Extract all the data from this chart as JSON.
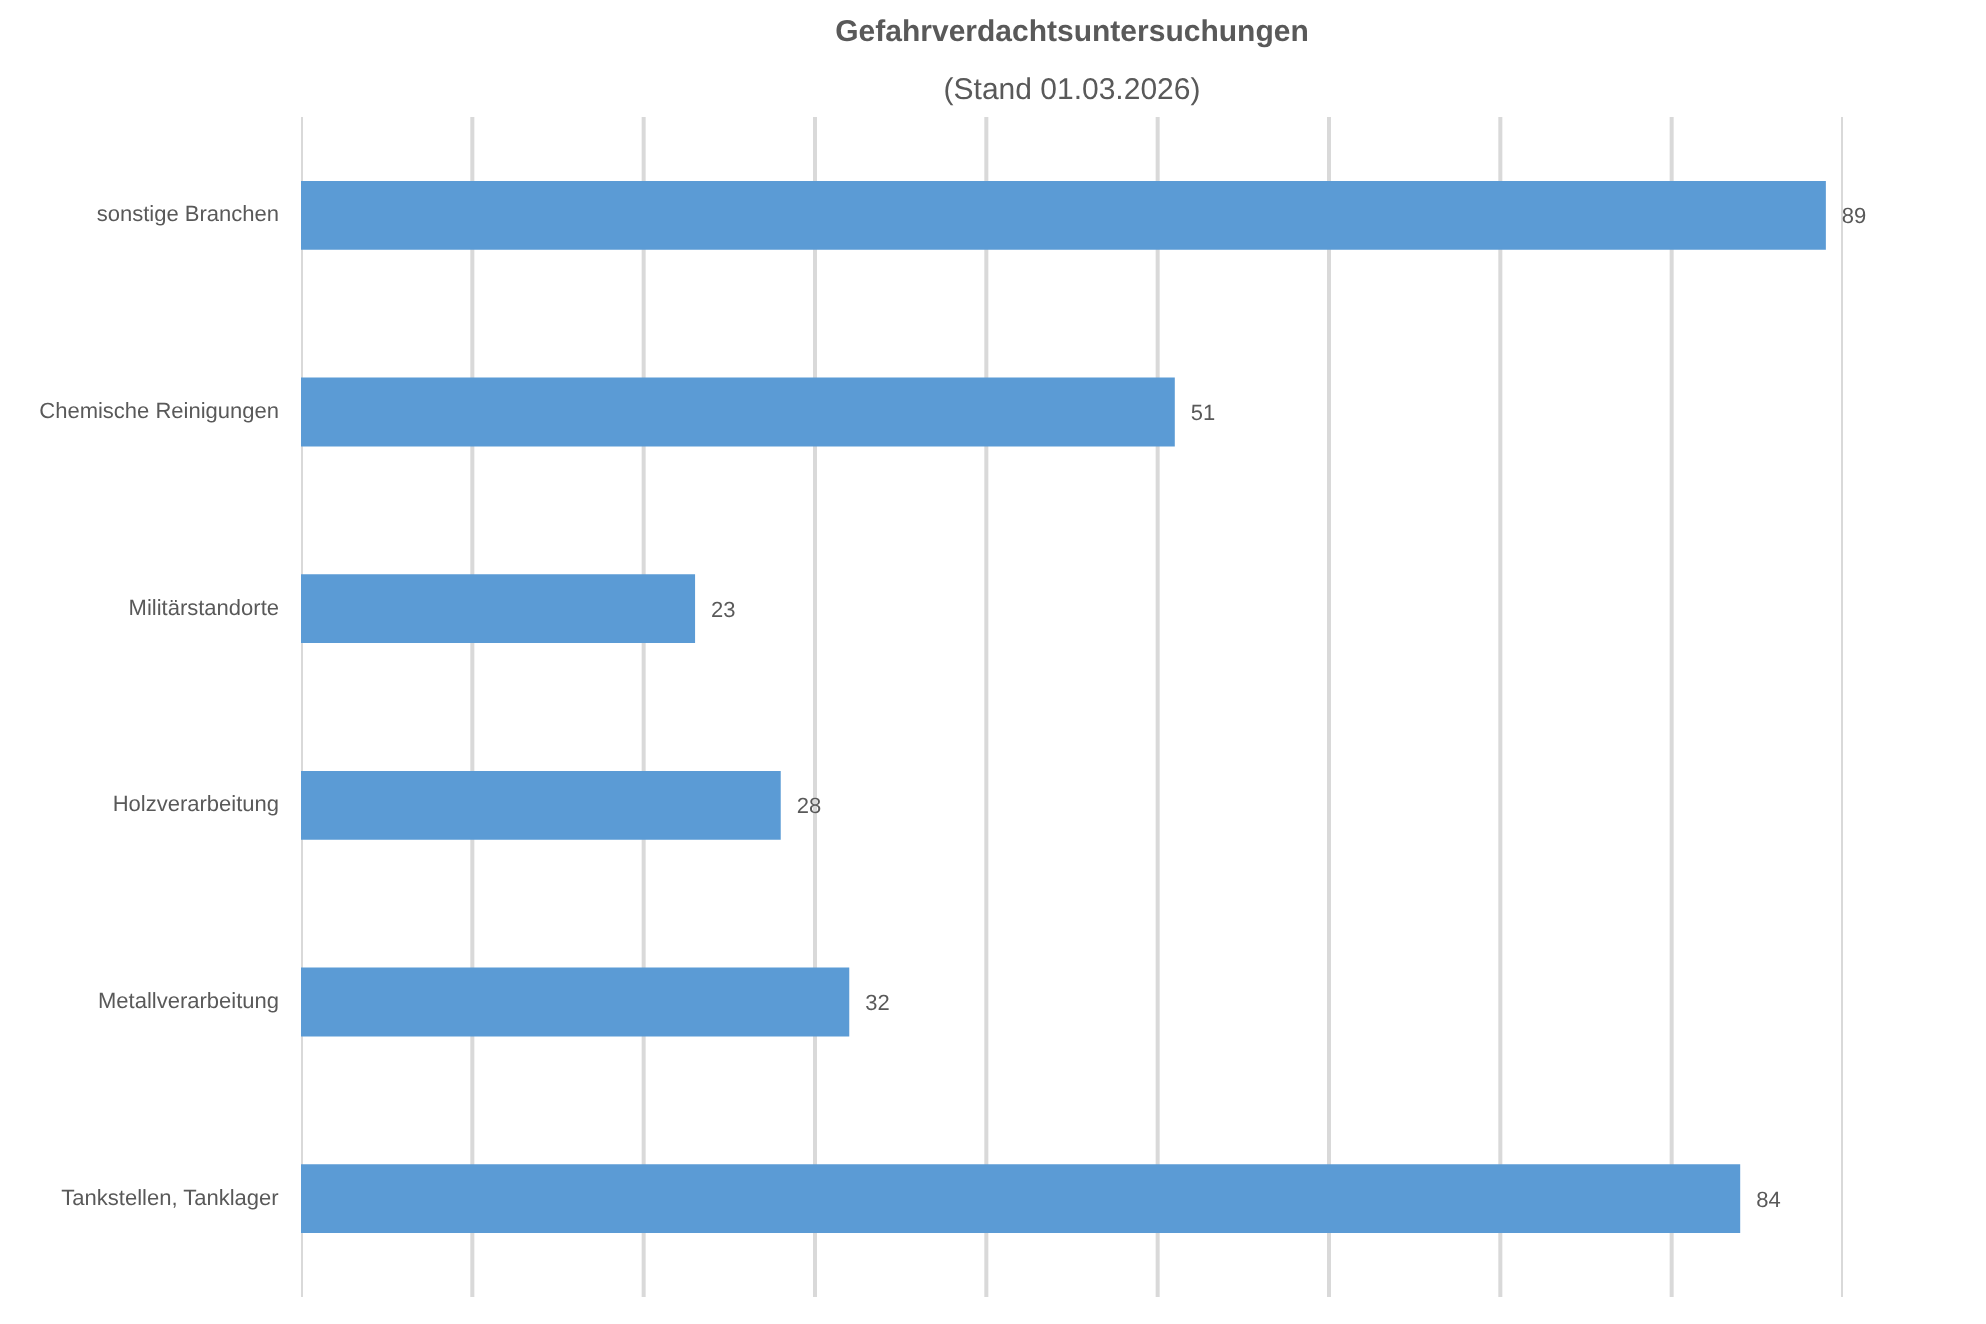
{
  "chart_data": {
    "type": "bar",
    "orientation": "horizontal",
    "title": "Gefahrverdachtsuntersuchungen",
    "subtitle": "(Stand 01.03.2026)",
    "categories": [
      "sonstige Branchen",
      "Chemische Reinigungen",
      "Militärstandorte",
      "Holzverarbeitung",
      "Metallverarbeitung",
      "Tankstellen, Tanklager"
    ],
    "values": [
      89,
      51,
      23,
      28,
      32,
      84
    ],
    "color": "#5b9bd5",
    "xlim": [
      0,
      90
    ],
    "xticks": [
      {
        "value": 0,
        "label": null
      },
      {
        "value": 10,
        "label": null
      },
      {
        "value": 20,
        "label": null
      },
      {
        "value": 30,
        "label": null
      },
      {
        "value": 40,
        "label": null
      },
      {
        "value": 50,
        "label": null
      },
      {
        "value": 60,
        "label": null
      },
      {
        "value": 70,
        "label": null
      },
      {
        "value": 80,
        "label": null
      },
      {
        "value": 90,
        "label": null
      }
    ],
    "grid": "x",
    "tick_labels": "y",
    "data_labels": true
  }
}
